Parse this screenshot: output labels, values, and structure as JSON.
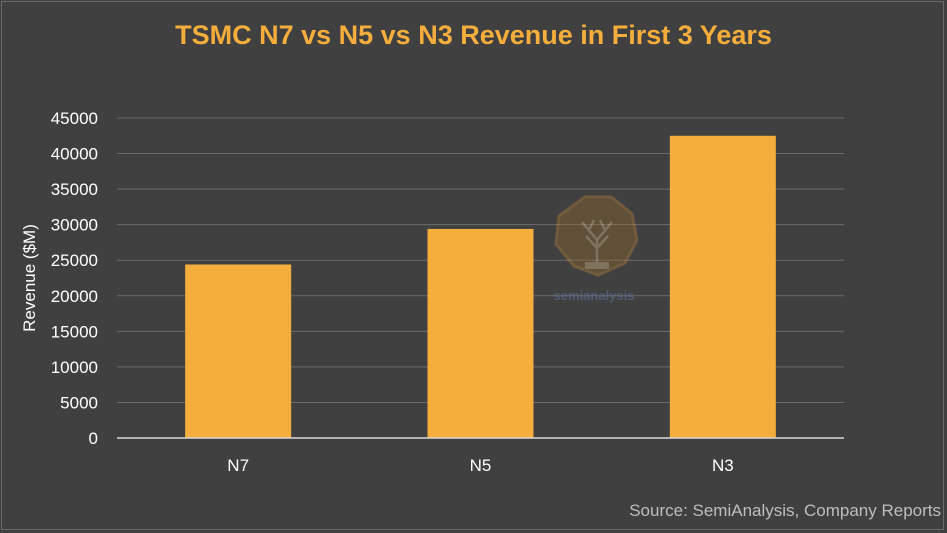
{
  "chart_data": {
    "type": "bar",
    "title": "TSMC N7 vs N5 vs N3 Revenue in First 3 Years",
    "xlabel": "",
    "ylabel": "Revenue ($M)",
    "categories": [
      "N7",
      "N5",
      "N3"
    ],
    "values": [
      24400,
      29400,
      42500
    ],
    "ylim": [
      0,
      45000
    ],
    "yticks": [
      "0",
      "5000",
      "10000",
      "15000",
      "20000",
      "25000",
      "30000",
      "35000",
      "40000",
      "45000"
    ],
    "grid": true,
    "legend": "none"
  },
  "watermark": "semianalysis",
  "source": "Source: SemiAnalysis, Company Reports",
  "colors": {
    "background": "#404040",
    "bar": "#f5ad3c",
    "title": "#f5ad3c",
    "axis_text": "#ffffff",
    "grid": "#6b6b6b",
    "source_text": "#bdbdbd"
  }
}
